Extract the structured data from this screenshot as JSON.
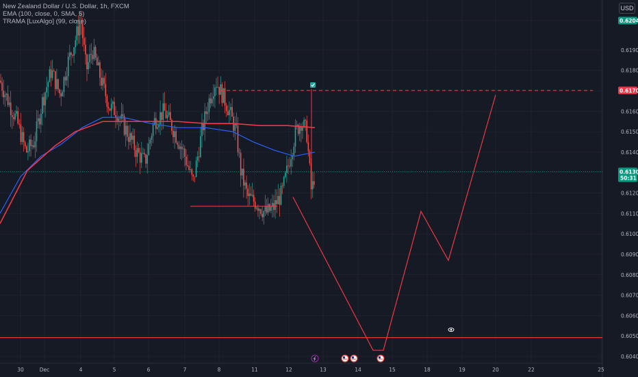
{
  "legend": {
    "symbol": "New Zealand Dollar / U.S. Dollar, 1h, FXCM",
    "ema": "EMA (100, close, 0, SMA, 5)",
    "trama": "TRAMA [LuxAlgo] (99, close)"
  },
  "currency_button": "USD",
  "chart_data": {
    "type": "candlestick",
    "y_ticks": [
      "0.62044",
      "0.61900",
      "0.61800",
      "0.61700",
      "0.61600",
      "0.61500",
      "0.61400",
      "0.61300",
      "0.61200",
      "0.61100",
      "0.61000",
      "0.60900",
      "0.60800",
      "0.60700",
      "0.60600",
      "0.60500",
      "0.60400"
    ],
    "y_range": [
      0.6038,
      0.6208
    ],
    "x_ticks": [
      "30",
      "Dec",
      "4",
      "5",
      "6",
      "7",
      "8",
      "11",
      "12",
      "13",
      "14",
      "15",
      "18",
      "19",
      "20",
      "22",
      "25"
    ],
    "x_range": [
      0,
      878
    ],
    "price_labels": {
      "current_price": "0.61304",
      "countdown": "50:31",
      "target_price": "0.61702",
      "top_price": "0.62044"
    },
    "levels": {
      "target": 0.61702,
      "support": 0.61135,
      "bottom": 0.60492,
      "current": 0.61304
    },
    "projection_path": [
      {
        "x": 428,
        "y": 0.6118
      },
      {
        "x": 545,
        "y": 0.6043
      },
      {
        "x": 560,
        "y": 0.6043
      },
      {
        "x": 615,
        "y": 0.6111
      },
      {
        "x": 655,
        "y": 0.6087
      },
      {
        "x": 724,
        "y": 0.6168
      }
    ],
    "ema_points": [
      {
        "x": 0,
        "y": 0.611
      },
      {
        "x": 30,
        "y": 0.6128
      },
      {
        "x": 60,
        "y": 0.6138
      },
      {
        "x": 90,
        "y": 0.6144
      },
      {
        "x": 120,
        "y": 0.6152
      },
      {
        "x": 150,
        "y": 0.6157
      },
      {
        "x": 180,
        "y": 0.6157
      },
      {
        "x": 220,
        "y": 0.6154
      },
      {
        "x": 260,
        "y": 0.6152
      },
      {
        "x": 300,
        "y": 0.6152
      },
      {
        "x": 340,
        "y": 0.615
      },
      {
        "x": 370,
        "y": 0.6145
      },
      {
        "x": 400,
        "y": 0.6141
      },
      {
        "x": 430,
        "y": 0.6138
      },
      {
        "x": 460,
        "y": 0.614
      }
    ],
    "trama_points": [
      {
        "x": 0,
        "y": 0.6105
      },
      {
        "x": 40,
        "y": 0.6131
      },
      {
        "x": 80,
        "y": 0.6143
      },
      {
        "x": 110,
        "y": 0.615
      },
      {
        "x": 150,
        "y": 0.6155
      },
      {
        "x": 200,
        "y": 0.6155
      },
      {
        "x": 260,
        "y": 0.6155
      },
      {
        "x": 300,
        "y": 0.6154
      },
      {
        "x": 340,
        "y": 0.6154
      },
      {
        "x": 380,
        "y": 0.6153
      },
      {
        "x": 420,
        "y": 0.6153
      },
      {
        "x": 460,
        "y": 0.6152
      }
    ],
    "candle_anchors": [
      {
        "x": 0,
        "p": 0.6175
      },
      {
        "x": 12,
        "p": 0.6165
      },
      {
        "x": 25,
        "p": 0.6155
      },
      {
        "x": 38,
        "p": 0.614
      },
      {
        "x": 50,
        "p": 0.6145
      },
      {
        "x": 62,
        "p": 0.6165
      },
      {
        "x": 75,
        "p": 0.618
      },
      {
        "x": 88,
        "p": 0.6168
      },
      {
        "x": 100,
        "p": 0.6185
      },
      {
        "x": 110,
        "p": 0.6195
      },
      {
        "x": 118,
        "p": 0.6205
      },
      {
        "x": 126,
        "p": 0.618
      },
      {
        "x": 135,
        "p": 0.619
      },
      {
        "x": 148,
        "p": 0.6175
      },
      {
        "x": 160,
        "p": 0.6162
      },
      {
        "x": 170,
        "p": 0.616
      },
      {
        "x": 185,
        "p": 0.615
      },
      {
        "x": 200,
        "p": 0.614
      },
      {
        "x": 212,
        "p": 0.6135
      },
      {
        "x": 225,
        "p": 0.6155
      },
      {
        "x": 240,
        "p": 0.616
      },
      {
        "x": 255,
        "p": 0.615
      },
      {
        "x": 268,
        "p": 0.614
      },
      {
        "x": 282,
        "p": 0.6125
      },
      {
        "x": 295,
        "p": 0.615
      },
      {
        "x": 305,
        "p": 0.6165
      },
      {
        "x": 315,
        "p": 0.6175
      },
      {
        "x": 325,
        "p": 0.6168
      },
      {
        "x": 335,
        "p": 0.616
      },
      {
        "x": 345,
        "p": 0.615
      },
      {
        "x": 352,
        "p": 0.613
      },
      {
        "x": 362,
        "p": 0.6118
      },
      {
        "x": 375,
        "p": 0.6115
      },
      {
        "x": 388,
        "p": 0.611
      },
      {
        "x": 400,
        "p": 0.6113
      },
      {
        "x": 412,
        "p": 0.612
      },
      {
        "x": 422,
        "p": 0.6135
      },
      {
        "x": 432,
        "p": 0.615
      },
      {
        "x": 440,
        "p": 0.6155
      },
      {
        "x": 448,
        "p": 0.615
      },
      {
        "x": 455,
        "p": 0.612
      },
      {
        "x": 460,
        "p": 0.613
      }
    ],
    "events": [
      {
        "x": 460,
        "icon": "lightning-icon"
      },
      {
        "x": 504,
        "icon": "us-flag-icon"
      },
      {
        "x": 517,
        "icon": "us-flag-icon"
      },
      {
        "x": 556,
        "icon": "us-flag-icon"
      }
    ],
    "colors": {
      "background": "#161a25",
      "up": "#26a69a",
      "down": "#ef5350",
      "ema": "#2962ff",
      "trama": "#f23645",
      "projection": "#f23645",
      "grid": "#242733",
      "current_badge": "#089981",
      "target_badge": "#f23645"
    }
  }
}
